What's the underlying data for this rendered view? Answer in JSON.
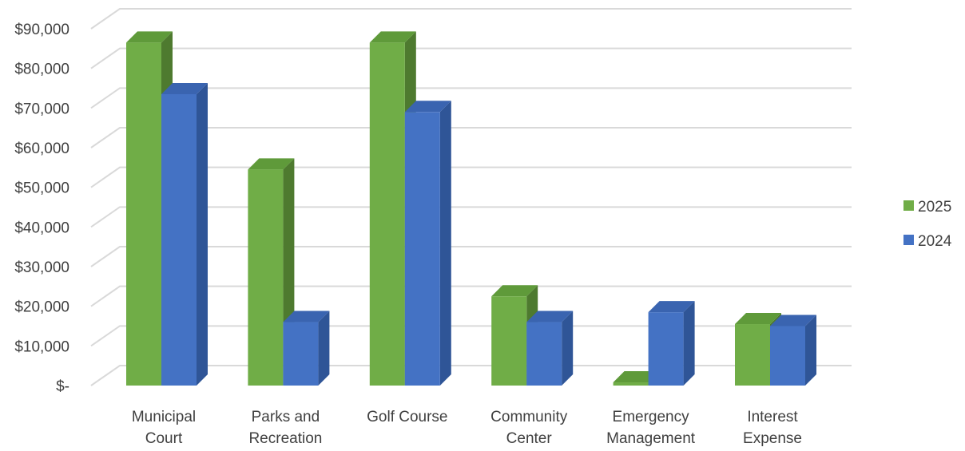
{
  "chart_data": {
    "type": "bar",
    "style": "3d-clustered-column",
    "title": "",
    "xlabel": "",
    "ylabel": "",
    "ylim": [
      0,
      90000
    ],
    "y_ticks": [
      "$-",
      "$10,000",
      "$20,000",
      "$30,000",
      "$40,000",
      "$50,000",
      "$60,000",
      "$70,000",
      "$80,000",
      "$90,000"
    ],
    "categories": [
      [
        "Municipal",
        "Court"
      ],
      [
        "Parks and",
        "Recreation"
      ],
      [
        "Golf Course"
      ],
      [
        "Community",
        "Center"
      ],
      [
        "Emergency",
        "Management"
      ],
      [
        "Interest",
        "Expense"
      ]
    ],
    "series": [
      {
        "name": "2025",
        "color": "#70ad47",
        "side": "#4e7a2f",
        "top": "#5f9a3a",
        "values": [
          86500,
          54500,
          86500,
          22500,
          800,
          15500
        ]
      },
      {
        "name": "2024",
        "color": "#4472c4",
        "side": "#2f5597",
        "top": "#3a64b0",
        "values": [
          73500,
          16000,
          69000,
          16000,
          18500,
          15000
        ]
      }
    ],
    "grid": true,
    "legend": "right"
  }
}
